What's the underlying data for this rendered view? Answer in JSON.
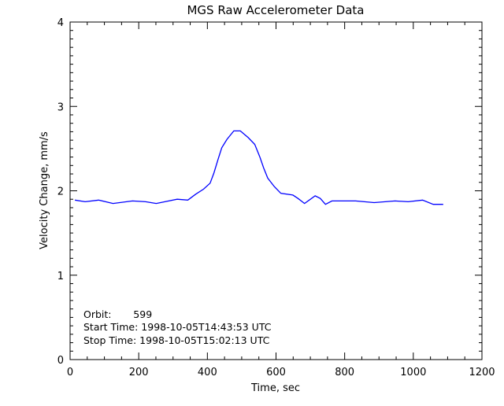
{
  "chart_data": {
    "type": "line",
    "title": "MGS Raw Accelerometer Data",
    "xlabel": "Time, sec",
    "ylabel": "Velocity Change, mm/s",
    "xlim": [
      0,
      1200
    ],
    "ylim": [
      0,
      4
    ],
    "xticks": [
      0,
      200,
      400,
      600,
      800,
      1000,
      1200
    ],
    "yticks": [
      0,
      1,
      2,
      3,
      4
    ],
    "grid": false,
    "line_color": "#0000ff",
    "annotations": [
      "Orbit:       599",
      "Start Time: 1998-10-05T14:43:53 UTC",
      "Stop Time: 1998-10-05T15:02:13 UTC"
    ],
    "series": [
      {
        "x": [
          14,
          44,
          83,
          125,
          182,
          220,
          251,
          312,
          343,
          366,
          389,
          408,
          419,
          431,
          442,
          457,
          477,
          496,
          519,
          538,
          553,
          564,
          576,
          595,
          614,
          649,
          664,
          683,
          714,
          729,
          744,
          763,
          832,
          886,
          947,
          985,
          1027,
          1058,
          1087
        ],
        "y": [
          1.89,
          1.87,
          1.89,
          1.85,
          1.88,
          1.87,
          1.85,
          1.9,
          1.89,
          1.96,
          2.02,
          2.09,
          2.21,
          2.37,
          2.51,
          2.61,
          2.71,
          2.71,
          2.63,
          2.55,
          2.4,
          2.27,
          2.15,
          2.05,
          1.97,
          1.95,
          1.91,
          1.85,
          1.94,
          1.91,
          1.84,
          1.88,
          1.88,
          1.86,
          1.88,
          1.87,
          1.89,
          1.84,
          1.84
        ]
      }
    ]
  }
}
